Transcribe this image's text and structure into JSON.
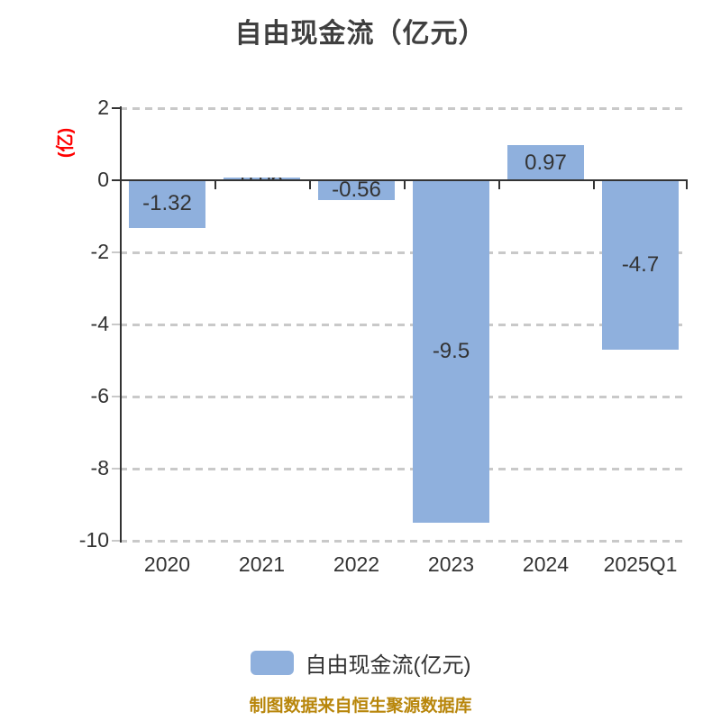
{
  "title": "自由现金流（亿元）",
  "chart_data": {
    "type": "bar",
    "title": "自由现金流（亿元）",
    "categories": [
      "2020",
      "2021",
      "2022",
      "2023",
      "2024",
      "2025Q1"
    ],
    "series": [
      {
        "name": "自由现金流(亿元)",
        "values": [
          -1.32,
          0.06,
          -0.56,
          -9.5,
          0.97,
          -4.7
        ],
        "labels": [
          "-1.32",
          "0.06",
          "-0.56",
          "-9.5",
          "0.97",
          "-4.7"
        ]
      }
    ],
    "ylabel": "(亿)",
    "ylim": [
      -10,
      2
    ],
    "yticks": [
      2,
      0,
      -2,
      -4,
      -6,
      -8,
      -10
    ],
    "grid": "horizontal-dashed",
    "legend_position": "bottom"
  },
  "legend": {
    "items": [
      {
        "label": "自由现金流(亿元)",
        "color": "#8fb0dd"
      }
    ]
  },
  "footer": {
    "text": "制图数据来自恒生聚源数据库"
  },
  "colors": {
    "bar": "#8fb0dd",
    "axis": "#333333",
    "gridline": "#c9c9c9",
    "text": "#333333",
    "title": "#3f3f3f",
    "y_name_red": "#ff0000",
    "footer_orange": "#b8860b"
  }
}
